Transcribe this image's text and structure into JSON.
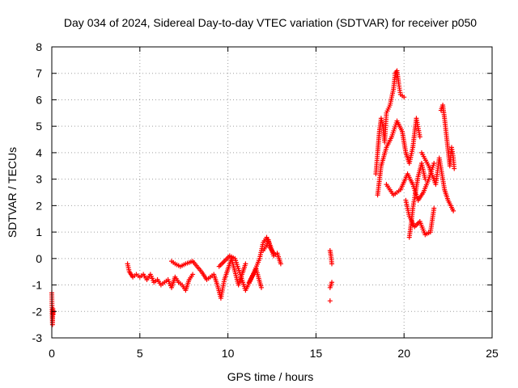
{
  "chart_data": {
    "type": "scatter",
    "title": "Day 034 of 2024, Sidereal Day-to-day VTEC variation (SDTVAR) for receiver p050",
    "xlabel": "GPS time / hours",
    "ylabel": "SDTVAR / TECUs",
    "xlim": [
      0,
      25
    ],
    "ylim": [
      -3,
      8
    ],
    "xticks": [
      0,
      5,
      10,
      15,
      20,
      25
    ],
    "yticks": [
      -3,
      -2,
      -1,
      0,
      1,
      2,
      3,
      4,
      5,
      6,
      7,
      8
    ],
    "grid": true,
    "marker": "+",
    "colors": {
      "series": "#ff0000",
      "axis": "#000000",
      "grid": "#a0a0a0"
    },
    "series": [
      {
        "name": "SDTVAR",
        "x": [
          0.0,
          0.02,
          0.04,
          0.06,
          0.08,
          4.3,
          4.4,
          4.5,
          4.6,
          4.8,
          5.0,
          5.2,
          5.4,
          5.6,
          5.8,
          6.0,
          6.2,
          6.4,
          6.6,
          6.8,
          7.0,
          7.2,
          7.4,
          7.6,
          7.8,
          8.0,
          6.8,
          7.0,
          7.3,
          7.6,
          8.0,
          8.5,
          8.8,
          9.2,
          9.4,
          9.6,
          9.8,
          10.0,
          10.2,
          10.4,
          10.6,
          10.8,
          11.0,
          9.5,
          9.8,
          10.1,
          10.4,
          10.7,
          11.0,
          11.3,
          11.6,
          11.9,
          11.2,
          11.5,
          11.8,
          12.0,
          12.2,
          12.4,
          12.6,
          12.8,
          13.0,
          12.0,
          12.2,
          12.3,
          12.4,
          12.6,
          15.8,
          15.85,
          15.9,
          15.8,
          15.9,
          15.8,
          18.4,
          18.5,
          18.6,
          18.7,
          18.8,
          18.9,
          19.0,
          19.2,
          19.4,
          19.5,
          19.6,
          19.7,
          19.8,
          20.0,
          18.5,
          18.7,
          19.0,
          19.3,
          19.6,
          19.9,
          20.1,
          20.3,
          20.5,
          20.7,
          20.9,
          19.0,
          19.4,
          19.8,
          20.2,
          20.5,
          20.8,
          21.1,
          21.4,
          21.7,
          20.1,
          20.3,
          20.6,
          20.9,
          21.2,
          21.5,
          21.7,
          20.3,
          20.4,
          20.5,
          20.6,
          20.8,
          21.0,
          21.2,
          21.0,
          21.4,
          21.8,
          22.0,
          22.3,
          22.5,
          22.8,
          22.1,
          22.2,
          22.3,
          22.6,
          22.7,
          22.8,
          22.85
        ],
        "y": [
          -1.3,
          -2.0,
          -2.5,
          -1.9,
          -2.1,
          -0.2,
          -0.5,
          -0.6,
          -0.7,
          -0.6,
          -0.7,
          -0.6,
          -0.8,
          -0.6,
          -0.9,
          -0.8,
          -1.0,
          -0.9,
          -0.8,
          -1.1,
          -0.7,
          -0.9,
          -1.0,
          -1.2,
          -0.8,
          -0.6,
          -0.1,
          -0.2,
          -0.3,
          -0.2,
          -0.1,
          -0.5,
          -0.8,
          -0.6,
          -1.0,
          -1.5,
          -0.8,
          -0.4,
          0.0,
          -0.5,
          -1.0,
          -0.6,
          -0.2,
          -0.3,
          -0.1,
          0.1,
          0.0,
          -0.6,
          -1.2,
          -0.8,
          -0.4,
          -1.1,
          -0.9,
          -0.5,
          0.0,
          0.6,
          0.8,
          0.5,
          0.1,
          0.2,
          -0.2,
          0.3,
          0.5,
          0.7,
          0.4,
          0.2,
          0.3,
          0.1,
          -0.2,
          -1.1,
          -0.9,
          -1.6,
          3.2,
          4.0,
          4.8,
          5.3,
          5.0,
          4.4,
          5.5,
          5.8,
          6.4,
          7.0,
          7.1,
          6.6,
          6.2,
          6.1,
          2.4,
          3.5,
          4.2,
          4.6,
          5.2,
          4.8,
          4.0,
          3.6,
          4.2,
          5.3,
          4.6,
          2.8,
          2.4,
          2.6,
          3.2,
          2.8,
          2.2,
          2.5,
          3.0,
          3.6,
          2.2,
          1.6,
          1.2,
          1.4,
          0.9,
          1.0,
          1.9,
          0.8,
          1.3,
          1.9,
          2.3,
          3.1,
          3.6,
          3.0,
          4.0,
          3.5,
          2.8,
          3.8,
          2.6,
          2.2,
          1.8,
          5.6,
          5.8,
          5.3,
          3.5,
          4.2,
          3.8,
          3.4
        ]
      }
    ]
  }
}
